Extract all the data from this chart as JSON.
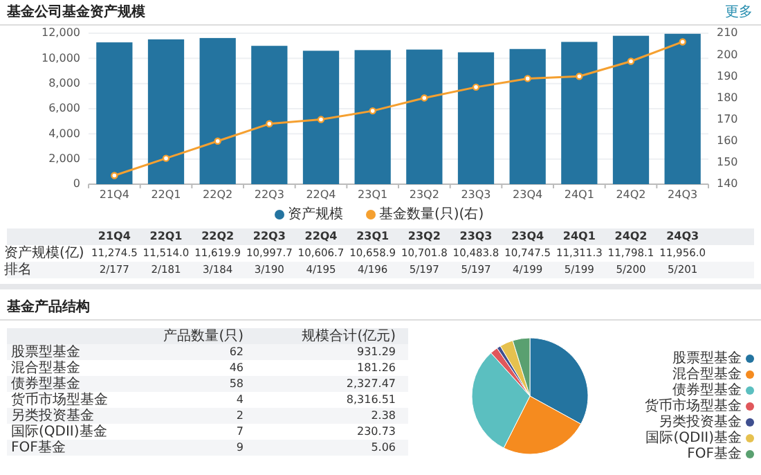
{
  "chart_data": [
    {
      "type": "bar",
      "title": "基金公司基金资产规模",
      "categories": [
        "21Q4",
        "22Q1",
        "22Q2",
        "22Q3",
        "22Q4",
        "23Q1",
        "23Q2",
        "23Q3",
        "23Q4",
        "24Q1",
        "24Q2",
        "24Q3"
      ],
      "series": [
        {
          "name": "资产规模",
          "color": "#2474a0",
          "values": [
            11274.5,
            11514.0,
            11619.9,
            10997.7,
            10606.7,
            10658.9,
            10701.8,
            10483.8,
            10747.5,
            11311.3,
            11798.1,
            11956.0
          ],
          "value_labels": [
            "11,274.5",
            "11,514.0",
            "11,619.9",
            "10,997.7",
            "10,606.7",
            "10,658.9",
            "10,701.8",
            "10,483.8",
            "10,747.5",
            "11,311.3",
            "11,798.1",
            "11,956.0"
          ]
        },
        {
          "name": "基金数量(只)(右)",
          "type": "line",
          "axis": "y2",
          "color": "#f5a030",
          "values": [
            144,
            152,
            160,
            168,
            170,
            174,
            180,
            185,
            189,
            190,
            197,
            206
          ]
        }
      ],
      "ylim": [
        0,
        12000
      ],
      "yticks": [
        0,
        {
          "value": 2000,
          "label": "2,000"
        },
        {
          "value": 4000,
          "label": "4,000"
        },
        {
          "value": 6000,
          "label": "6,000"
        },
        {
          "value": 8000,
          "label": "8,000"
        },
        {
          "value": 10000,
          "label": "10,000"
        },
        {
          "value": 12000,
          "label": "12,000"
        }
      ],
      "y2lim": [
        140,
        210
      ],
      "y2ticks": [
        140,
        150,
        160,
        170,
        180,
        190,
        200,
        210
      ],
      "grid": "y",
      "legend": "bottom",
      "marker": "circle",
      "annotations": [
        "更多",
        "资产规模(亿)",
        "排名",
        "2/177",
        "2/181",
        "3/184",
        "3/190",
        "4/195",
        "4/196",
        "5/197",
        "5/197",
        "4/199",
        "5/199",
        "5/200",
        "5/201"
      ]
    },
    {
      "type": "other",
      "title": "基金产品结构",
      "categories": [
        "股票型基金",
        "混合型基金",
        "债券型基金",
        "货币市场型基金",
        "另类投资基金",
        "国际(QDII)基金",
        "FOF基金"
      ],
      "series": [
        {
          "name": "规模合计(亿元)",
          "values": [
            931.29,
            181.26,
            2327.47,
            8316.51,
            2.38,
            230.73,
            5.06
          ],
          "value_labels": [
            "931.29",
            "181.26",
            "2,327.47",
            "8,316.51",
            "2.38",
            "230.73",
            "5.06"
          ]
        }
      ],
      "data_labels": true
    },
    {
      "type": "pie",
      "categories": [
        "股票型基金",
        "混合型基金",
        "债券型基金",
        "货币市场型基金",
        "另类投资基金",
        "国际(QDII)基金",
        "FOF基金"
      ],
      "values": [
        62,
        46,
        58,
        4,
        2,
        7,
        9
      ],
      "data_labels": true,
      "annotations": [
        "产品数量(只)"
      ],
      "colors": [
        "#2474a0",
        "#f58b1f",
        "#5bbfc0",
        "#e0575b",
        "#3f4f8f",
        "#e6c14f",
        "#5aa070"
      ],
      "legend": "right"
    }
  ]
}
